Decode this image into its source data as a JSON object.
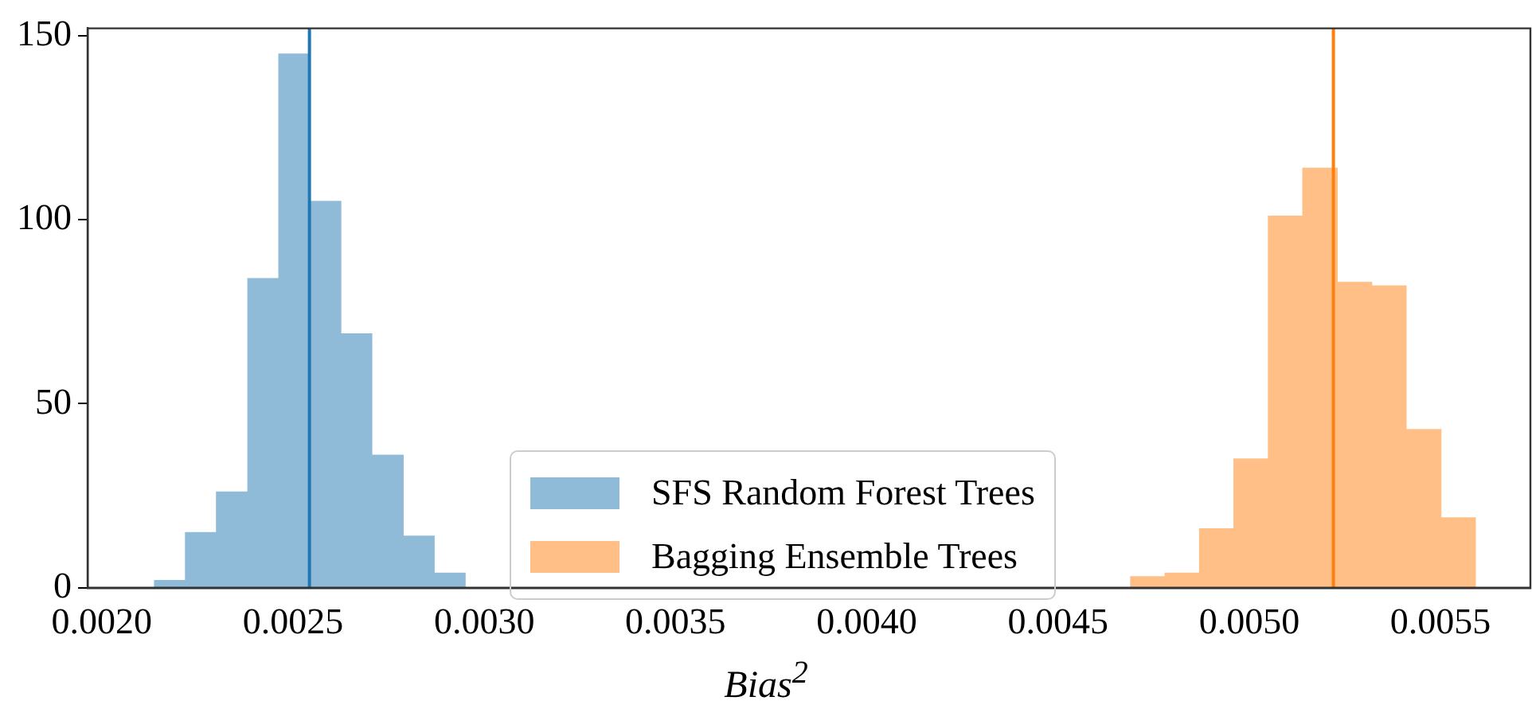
{
  "chart_data": {
    "type": "histogram",
    "xlabel": "Bias$^{2}$",
    "bins": [
      0.002138,
      0.002219,
      0.0023,
      0.002382,
      0.002463,
      0.002544,
      0.002625,
      0.002706,
      0.002788,
      0.002869,
      0.00295
    ],
    "series": [
      {
        "name": "SFS Random Forest Trees",
        "color": "#8fbbd9",
        "values": [
          2,
          15,
          26,
          84,
          145,
          105,
          69,
          36,
          14,
          4
        ]
      },
      {
        "name": "Bagging Ensemble Trees",
        "color": "#ffbf86",
        "bins": [
          0.00469,
          0.00478,
          0.00487,
          0.00496,
          0.00505,
          0.00514,
          0.00523,
          0.00532,
          0.00541,
          0.005501,
          0.005591
        ],
        "values": [
          3,
          4,
          16,
          35,
          101,
          114,
          83,
          82,
          43,
          19
        ]
      }
    ],
    "ref_lines": [
      {
        "axis": "x",
        "value": 0.002543,
        "color": "#1f77b4"
      },
      {
        "axis": "x",
        "value": 0.00522,
        "color": "#ff7f0e"
      }
    ],
    "xlim": [
      0.001963,
      0.005735
    ],
    "xticks": [
      {
        "value": 0.002,
        "label": "0.0020"
      },
      {
        "value": 0.0025,
        "label": "0.0025"
      },
      {
        "value": 0.003,
        "label": "0.0030"
      },
      {
        "value": 0.0035,
        "label": "0.0035"
      },
      {
        "value": 0.004,
        "label": "0.0040"
      },
      {
        "value": 0.0045,
        "label": "0.0045"
      },
      {
        "value": 0.005,
        "label": "0.0050"
      },
      {
        "value": 0.0055,
        "label": "0.0055"
      }
    ],
    "ylim": [
      0,
      152
    ],
    "yticks": [
      0,
      50,
      100,
      150
    ],
    "grid": false,
    "legend": "bottom"
  }
}
